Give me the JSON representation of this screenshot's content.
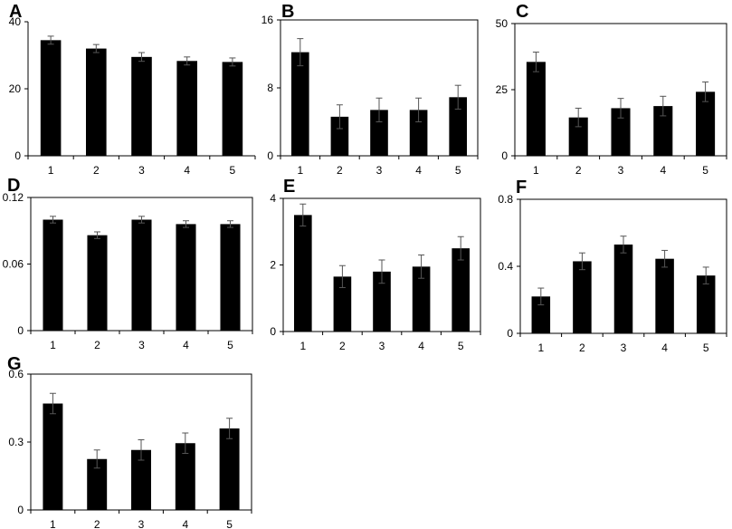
{
  "figure": {
    "background_color": "#ffffff",
    "bar_color": "#000000",
    "error_bar_color": "#555555"
  },
  "chart_data": [
    {
      "panel": "A",
      "type": "bar",
      "categories": [
        "1",
        "2",
        "3",
        "4",
        "5"
      ],
      "values": [
        34.5,
        32.0,
        29.5,
        28.3,
        28.0
      ],
      "errors": [
        1.2,
        1.2,
        1.3,
        1.2,
        1.2
      ],
      "ylim": [
        0,
        40
      ],
      "yticks": [
        "0",
        "20",
        "40"
      ],
      "ytick_values": [
        0,
        20,
        40
      ],
      "box": false,
      "title": "",
      "xlabel": "",
      "ylabel": ""
    },
    {
      "panel": "B",
      "type": "bar",
      "categories": [
        "1",
        "2",
        "3",
        "4",
        "5"
      ],
      "values": [
        12.2,
        4.6,
        5.4,
        5.4,
        6.9
      ],
      "errors": [
        1.6,
        1.4,
        1.4,
        1.4,
        1.4
      ],
      "ylim": [
        0,
        16
      ],
      "yticks": [
        "0",
        "8",
        "16"
      ],
      "ytick_values": [
        0,
        8,
        16
      ],
      "box": true,
      "title": "",
      "xlabel": "",
      "ylabel": ""
    },
    {
      "panel": "C",
      "type": "bar",
      "categories": [
        "1",
        "2",
        "3",
        "4",
        "5"
      ],
      "values": [
        35.5,
        14.5,
        18.0,
        18.8,
        24.2
      ],
      "errors": [
        3.7,
        3.5,
        3.7,
        3.7,
        3.7
      ],
      "ylim": [
        0,
        50
      ],
      "yticks": [
        "0",
        "25",
        "50"
      ],
      "ytick_values": [
        0,
        25,
        50
      ],
      "box": true,
      "title": "",
      "xlabel": "",
      "ylabel": ""
    },
    {
      "panel": "D",
      "type": "bar",
      "categories": [
        "1",
        "2",
        "3",
        "4",
        "5"
      ],
      "values": [
        0.1,
        0.086,
        0.1,
        0.096,
        0.096
      ],
      "errors": [
        0.003,
        0.003,
        0.003,
        0.003,
        0.003
      ],
      "ylim": [
        0,
        0.12
      ],
      "yticks": [
        "0",
        "0.06",
        "0.12"
      ],
      "ytick_values": [
        0,
        0.06,
        0.12
      ],
      "box": true,
      "title": "",
      "xlabel": "",
      "ylabel": ""
    },
    {
      "panel": "E",
      "type": "bar",
      "categories": [
        "1",
        "2",
        "3",
        "4",
        "5"
      ],
      "values": [
        3.5,
        1.65,
        1.8,
        1.95,
        2.5
      ],
      "errors": [
        0.33,
        0.33,
        0.35,
        0.35,
        0.35
      ],
      "ylim": [
        0,
        4
      ],
      "yticks": [
        "0",
        "2",
        "4"
      ],
      "ytick_values": [
        0,
        2,
        4
      ],
      "box": true,
      "title": "",
      "xlabel": "",
      "ylabel": ""
    },
    {
      "panel": "F",
      "type": "bar",
      "categories": [
        "1",
        "2",
        "3",
        "4",
        "5"
      ],
      "values": [
        0.22,
        0.43,
        0.53,
        0.445,
        0.345
      ],
      "errors": [
        0.05,
        0.05,
        0.05,
        0.05,
        0.05
      ],
      "ylim": [
        0,
        0.8
      ],
      "yticks": [
        "0",
        "0.4",
        "0.8"
      ],
      "ytick_values": [
        0,
        0.4,
        0.8
      ],
      "box": true,
      "title": "",
      "xlabel": "",
      "ylabel": ""
    },
    {
      "panel": "G",
      "type": "bar",
      "categories": [
        "1",
        "2",
        "3",
        "4",
        "5"
      ],
      "values": [
        0.47,
        0.225,
        0.265,
        0.295,
        0.36
      ],
      "errors": [
        0.045,
        0.04,
        0.045,
        0.045,
        0.045
      ],
      "ylim": [
        0,
        0.6
      ],
      "yticks": [
        "0",
        "0.3",
        "0.6"
      ],
      "ytick_values": [
        0,
        0.3,
        0.6
      ],
      "box": true,
      "title": "",
      "xlabel": "",
      "ylabel": ""
    }
  ]
}
